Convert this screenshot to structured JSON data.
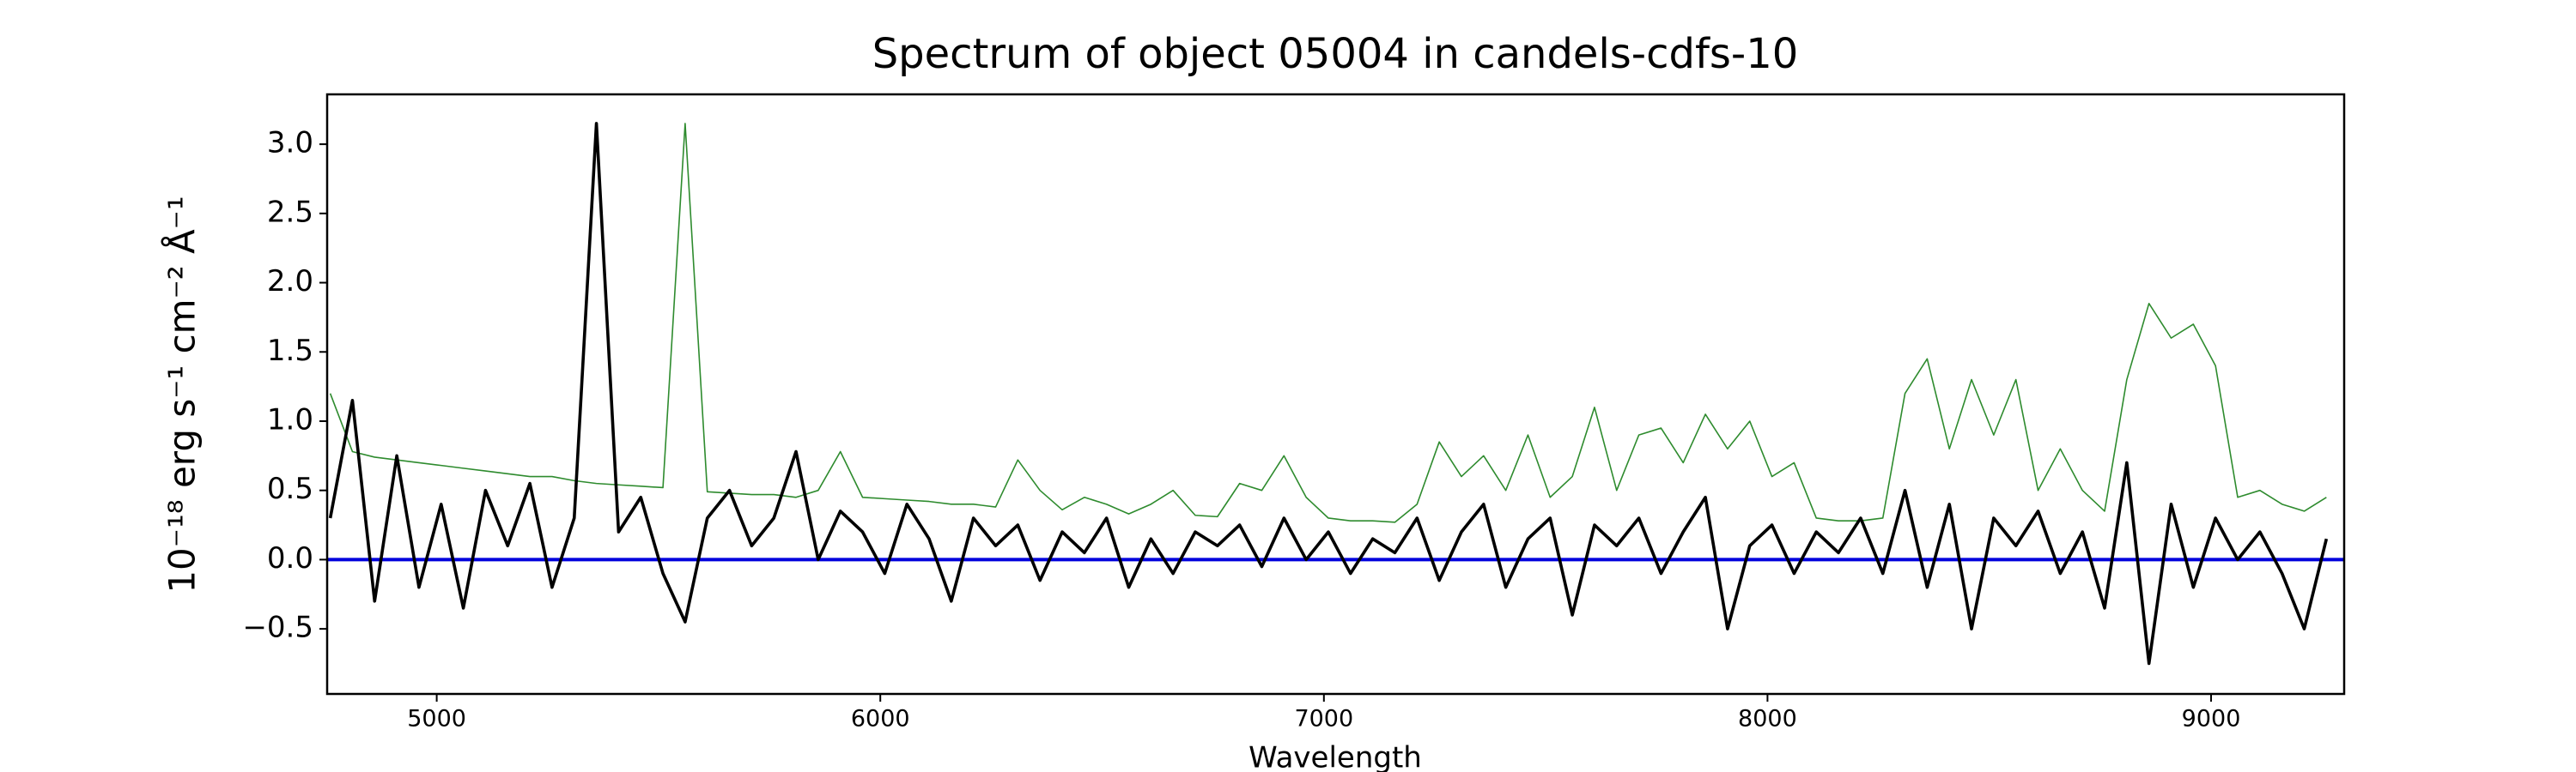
{
  "chart_data": {
    "type": "line",
    "title": "Spectrum of object 05004 in candels-cdfs-10",
    "x_label": "Wavelength",
    "y_label": "10⁻¹⁸ erg s⁻¹ cm⁻² Å⁻¹",
    "xlim": [
      4753,
      9300
    ],
    "ylim": [
      -0.97,
      3.36
    ],
    "xticks": [
      5000,
      6000,
      7000,
      8000,
      9000
    ],
    "yticks": [
      {
        "value": -0.5,
        "label": "−0.5"
      },
      {
        "value": 0,
        "label": "0.0"
      },
      0.5,
      {
        "value": 1,
        "label": "1.0"
      },
      1.5,
      {
        "value": 2,
        "label": "2.0"
      },
      2.5,
      {
        "value": 3,
        "label": "3.0"
      }
    ],
    "x": [
      4760,
      4810,
      4860,
      4910,
      4960,
      5010,
      5060,
      5110,
      5160,
      5210,
      5260,
      5310,
      5360,
      5410,
      5460,
      5510,
      5560,
      5610,
      5660,
      5710,
      5760,
      5810,
      5860,
      5910,
      5960,
      6010,
      6060,
      6110,
      6160,
      6210,
      6260,
      6310,
      6360,
      6410,
      6460,
      6510,
      6560,
      6610,
      6660,
      6710,
      6760,
      6810,
      6860,
      6910,
      6960,
      7010,
      7060,
      7110,
      7160,
      7210,
      7260,
      7310,
      7360,
      7410,
      7460,
      7510,
      7560,
      7610,
      7660,
      7710,
      7760,
      7810,
      7860,
      7910,
      7960,
      8010,
      8060,
      8110,
      8160,
      8210,
      8260,
      8310,
      8360,
      8410,
      8460,
      8510,
      8560,
      8610,
      8660,
      8710,
      8760,
      8810,
      8860,
      8910,
      8960,
      9010,
      9060,
      9110,
      9160,
      9210,
      9260
    ],
    "series": [
      {
        "color": "#2e8b2e",
        "width": 1.6,
        "values": [
          1.2,
          0.78,
          0.74,
          0.72,
          0.7,
          0.68,
          0.66,
          0.64,
          0.62,
          0.6,
          0.6,
          0.57,
          0.55,
          0.54,
          0.53,
          0.52,
          3.15,
          0.49,
          0.48,
          0.47,
          0.47,
          0.45,
          0.5,
          0.78,
          0.45,
          0.44,
          0.43,
          0.42,
          0.4,
          0.4,
          0.38,
          0.72,
          0.5,
          0.36,
          0.45,
          0.4,
          0.33,
          0.4,
          0.5,
          0.32,
          0.31,
          0.55,
          0.5,
          0.75,
          0.45,
          0.3,
          0.28,
          0.28,
          0.27,
          0.4,
          0.85,
          0.6,
          0.75,
          0.5,
          0.9,
          0.45,
          0.6,
          1.1,
          0.5,
          0.9,
          0.95,
          0.7,
          1.05,
          0.8,
          1.0,
          0.6,
          0.7,
          0.3,
          0.28,
          0.28,
          0.3,
          1.2,
          1.45,
          0.8,
          1.3,
          0.9,
          1.3,
          0.5,
          0.8,
          0.5,
          0.35,
          1.3,
          1.85,
          1.6,
          1.7,
          1.4,
          0.45,
          0.5,
          0.4,
          0.35,
          0.45
        ]
      },
      {
        "color": "#0000dd",
        "width": 4,
        "x": [
          4753,
          9300
        ],
        "values": [
          0,
          0
        ]
      },
      {
        "color": "#000000",
        "width": 3.6,
        "values": [
          0.3,
          1.15,
          -0.3,
          0.75,
          -0.2,
          0.4,
          -0.35,
          0.5,
          0.1,
          0.55,
          -0.2,
          0.3,
          3.15,
          0.2,
          0.45,
          -0.1,
          -0.45,
          0.3,
          0.5,
          0.1,
          0.3,
          0.78,
          0.0,
          0.35,
          0.2,
          -0.1,
          0.4,
          0.15,
          -0.3,
          0.3,
          0.1,
          0.25,
          -0.15,
          0.2,
          0.05,
          0.3,
          -0.2,
          0.15,
          -0.1,
          0.2,
          0.1,
          0.25,
          -0.05,
          0.3,
          0.0,
          0.2,
          -0.1,
          0.15,
          0.05,
          0.3,
          -0.15,
          0.2,
          0.4,
          -0.2,
          0.15,
          0.3,
          -0.4,
          0.25,
          0.1,
          0.3,
          -0.1,
          0.2,
          0.45,
          -0.5,
          0.1,
          0.25,
          -0.1,
          0.2,
          0.05,
          0.3,
          -0.1,
          0.5,
          -0.2,
          0.4,
          -0.5,
          0.3,
          0.1,
          0.35,
          -0.1,
          0.2,
          -0.35,
          0.7,
          -0.75,
          0.4,
          -0.2,
          0.3,
          0.0,
          0.2,
          -0.1,
          -0.5,
          0.15
        ]
      }
    ]
  }
}
